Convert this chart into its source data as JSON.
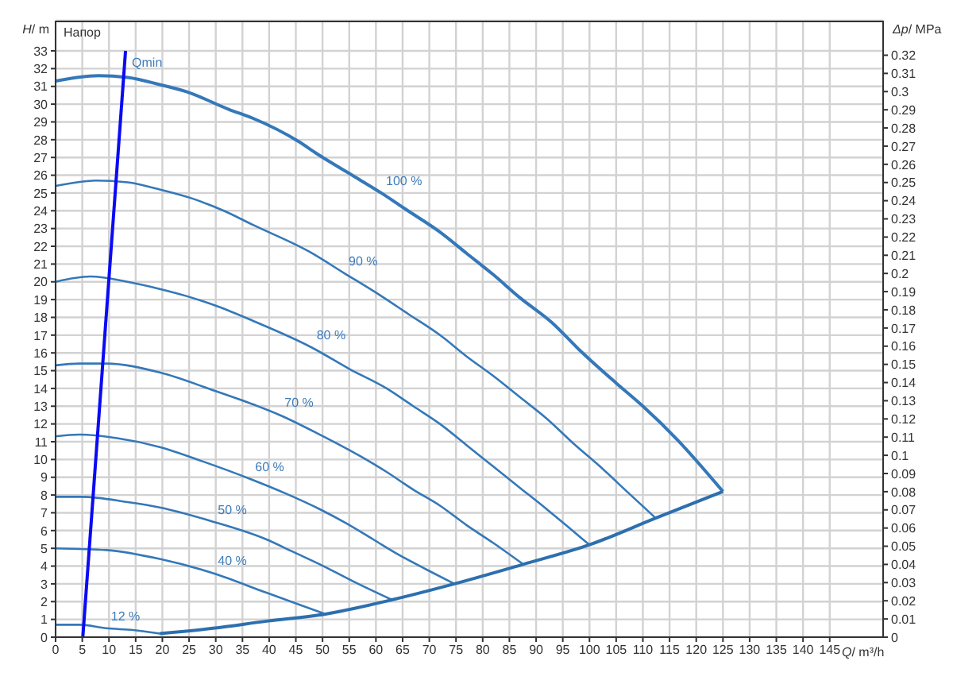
{
  "chart_data": {
    "type": "line",
    "ylabel": "H/ m",
    "y2label": "Δp/ MPa",
    "xlabel": "Q/ m³/h",
    "annotations": [
      "Напор"
    ],
    "xlim": [
      0,
      155
    ],
    "xticks": [
      0,
      5,
      10,
      15,
      20,
      25,
      30,
      35,
      40,
      45,
      50,
      55,
      60,
      65,
      70,
      75,
      80,
      85,
      90,
      95,
      100,
      105,
      110,
      115,
      120,
      125,
      130,
      135,
      140,
      145
    ],
    "ylim": [
      0,
      34.7
    ],
    "yticks": [
      0,
      1,
      2,
      3,
      4,
      5,
      6,
      7,
      8,
      9,
      10,
      11,
      12,
      13,
      14,
      15,
      16,
      17,
      18,
      19,
      20,
      21,
      22,
      23,
      24,
      25,
      26,
      27,
      28,
      29,
      30,
      31,
      32,
      33
    ],
    "y2lim": [
      0,
      0.339
    ],
    "y2ticks": [
      0,
      0.01,
      0.02,
      0.03,
      0.04,
      0.05,
      0.06,
      0.07,
      0.08,
      0.09,
      0.1,
      0.11,
      0.12,
      0.13,
      0.14,
      0.15,
      0.16,
      0.17,
      0.18,
      0.19,
      0.2,
      0.21,
      0.22,
      0.23,
      0.24,
      0.25,
      0.26,
      0.27,
      0.28,
      0.29,
      0.3,
      0.31,
      0.32
    ],
    "grid": true,
    "marker": "none",
    "series": [
      {
        "name": "100 %",
        "color": "#3478b9",
        "x": [
          0,
          4,
          8,
          13.5,
          19.5,
          24.5,
          32.5,
          37,
          45.5,
          49,
          55,
          61,
          66,
          72,
          77,
          82,
          87,
          93,
          98,
          105,
          110,
          116.5,
          125
        ],
        "values": [
          31.3,
          31.5,
          31.6,
          31.5,
          31.1,
          30.7,
          29.7,
          29.2,
          27.9,
          27.2,
          26.1,
          25.0,
          24.0,
          22.8,
          21.6,
          20.4,
          19.1,
          17.7,
          16.2,
          14.3,
          13.0,
          11.1,
          8.2
        ]
      },
      {
        "name": "90 %",
        "color": "#3478b9",
        "x": [
          0,
          4,
          7.5,
          13.5,
          19.5,
          25.5,
          31.5,
          37,
          47.5,
          54,
          61,
          66,
          72,
          77,
          82,
          87,
          92,
          97,
          102,
          107,
          112.4
        ],
        "values": [
          25.4,
          25.6,
          25.7,
          25.6,
          25.2,
          24.7,
          24.0,
          23.2,
          21.7,
          20.5,
          19.2,
          18.2,
          17.0,
          15.8,
          14.7,
          13.5,
          12.3,
          10.9,
          9.6,
          8.2,
          6.7
        ]
      },
      {
        "name": "80 %",
        "color": "#3478b9",
        "x": [
          0,
          6.5,
          13.5,
          19.5,
          24.5,
          30.5,
          37,
          48,
          55,
          62,
          67,
          72,
          77,
          82,
          87,
          92,
          96,
          100
        ],
        "values": [
          20.0,
          20.3,
          20.0,
          19.6,
          19.2,
          18.6,
          17.8,
          16.3,
          15.1,
          14.0,
          13.0,
          12.0,
          10.8,
          9.6,
          8.4,
          7.2,
          6.2,
          5.2
        ]
      },
      {
        "name": "70 %",
        "color": "#3478b9",
        "x": [
          0,
          4.5,
          9.5,
          19.5,
          29.5,
          37,
          42,
          49.5,
          57,
          62,
          67,
          72,
          77,
          82,
          87.6
        ],
        "values": [
          15.3,
          15.4,
          15.4,
          14.9,
          13.9,
          13.1,
          12.5,
          11.4,
          10.2,
          9.3,
          8.3,
          7.4,
          6.3,
          5.3,
          4.1
        ]
      },
      {
        "name": "60 %",
        "color": "#3478b9",
        "x": [
          0,
          4.5,
          11.5,
          19.5,
          27.5,
          36.5,
          43,
          49.5,
          54.5,
          59.5,
          64.5,
          69.5,
          74.7
        ],
        "values": [
          11.3,
          11.4,
          11.2,
          10.7,
          9.9,
          8.9,
          8.1,
          7.2,
          6.4,
          5.5,
          4.6,
          3.8,
          3.0
        ]
      },
      {
        "name": "50 %",
        "color": "#3478b9",
        "x": [
          0,
          5,
          13.5,
          19.5,
          29.5,
          39.5,
          44.5,
          49.5,
          56,
          63
        ],
        "values": [
          7.9,
          7.9,
          7.6,
          7.3,
          6.5,
          5.5,
          4.8,
          4.1,
          3.1,
          2.1
        ]
      },
      {
        "name": "40 %",
        "color": "#3478b9",
        "x": [
          0,
          9.5,
          19.5,
          29.5,
          39.5,
          50.5
        ],
        "values": [
          5.0,
          4.9,
          4.4,
          3.6,
          2.5,
          1.3
        ]
      },
      {
        "name": "12 %",
        "color": "#3478b9",
        "x": [
          0,
          4.5,
          9.5,
          14.5,
          19.5
        ],
        "values": [
          0.7,
          0.7,
          0.5,
          0.4,
          0.2
        ]
      },
      {
        "color": "#2d6fae",
        "x": [
          19.5,
          29.5,
          39.5,
          50.5,
          63,
          74.7,
          87.6,
          100,
          112.4,
          125
        ],
        "values": [
          0.2,
          0.5,
          0.9,
          1.3,
          2.1,
          3.0,
          4.1,
          5.2,
          6.7,
          8.2
        ]
      },
      {
        "name": "Qmin",
        "color": "#0a0af5",
        "x": [
          5.1,
          13.1
        ],
        "values": [
          0,
          33
        ]
      }
    ]
  }
}
